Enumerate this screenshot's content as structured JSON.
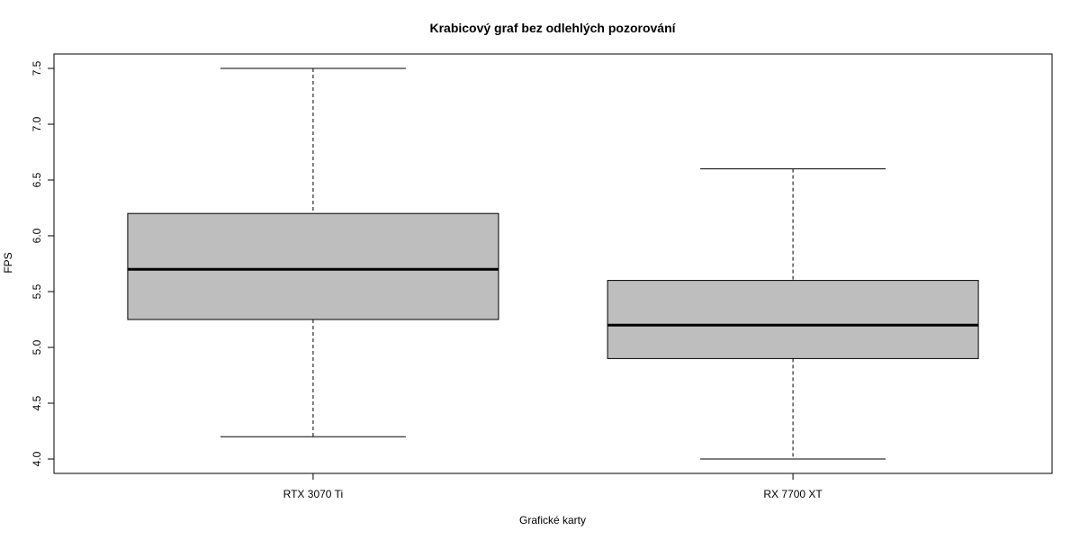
{
  "chart_data": {
    "type": "boxplot",
    "title": "Krabicový graf bez odlehlých pozorování",
    "xlabel": "Grafické karty",
    "ylabel": "FPS",
    "ylim": [
      3.85,
      7.6
    ],
    "yticks": [
      4.0,
      4.5,
      5.0,
      5.5,
      6.0,
      6.5,
      7.0,
      7.5
    ],
    "ytick_labels": [
      "4.0",
      "4.5",
      "5.0",
      "5.5",
      "6.0",
      "6.5",
      "7.0",
      "7.5"
    ],
    "grid": false,
    "box_fill": "#bebebe",
    "categories": [
      "RTX 3070 Ti",
      "RX 7700 XT"
    ],
    "boxes": [
      {
        "category": "RTX 3070 Ti",
        "whisker_low": 4.2,
        "q1": 5.25,
        "median": 5.7,
        "q3": 6.2,
        "whisker_high": 7.5
      },
      {
        "category": "RX 7700 XT",
        "whisker_low": 4.0,
        "q1": 4.9,
        "median": 5.2,
        "q3": 5.6,
        "whisker_high": 6.6
      }
    ]
  }
}
